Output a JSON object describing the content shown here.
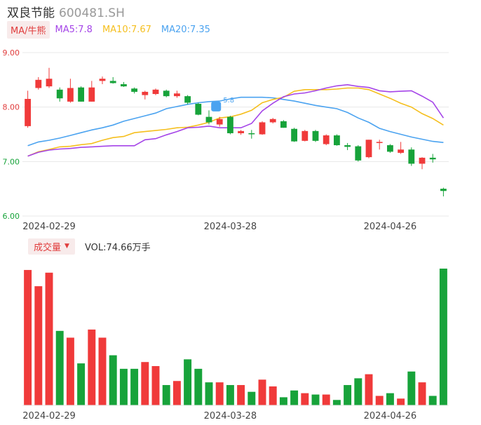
{
  "stock": {
    "name": "双良节能",
    "code": "600481.SH"
  },
  "ma": {
    "label": "MA/牛熊",
    "ma5": "MA5:7.8",
    "ma10": "MA10:7.67",
    "ma20": "MA20:7.35"
  },
  "volume": {
    "label": "成交量",
    "text": "VOL:74.66万手"
  },
  "colors": {
    "up": "#f03a3a",
    "down": "#17a33a",
    "ma5": "#a545e8",
    "ma10": "#f5bf1e",
    "ma20": "#4ba3f0",
    "grid": "#e8e8e8",
    "axis_text": "#666666",
    "ytick_up": "#e03c3c",
    "ytick_down": "#17a33a"
  },
  "chart_data": {
    "type": "candlestick",
    "yticks": [
      "9.00",
      "8.00",
      "7.00",
      "6.00"
    ],
    "ylim": [
      6.0,
      9.0
    ],
    "xtick_labels": [
      "2024-02-29",
      "2024-03-28",
      "2024-04-26"
    ],
    "xtick_index": [
      2,
      19,
      34
    ],
    "annotation": "5.8",
    "candles": [
      {
        "o": 7.65,
        "h": 8.3,
        "l": 7.62,
        "c": 8.15
      },
      {
        "o": 8.35,
        "h": 8.55,
        "l": 8.32,
        "c": 8.5
      },
      {
        "o": 8.38,
        "h": 8.72,
        "l": 8.35,
        "c": 8.52
      },
      {
        "o": 8.32,
        "h": 8.36,
        "l": 8.1,
        "c": 8.16
      },
      {
        "o": 8.1,
        "h": 8.52,
        "l": 8.08,
        "c": 8.35
      },
      {
        "o": 8.36,
        "h": 8.38,
        "l": 8.1,
        "c": 8.1
      },
      {
        "o": 8.1,
        "h": 8.48,
        "l": 8.1,
        "c": 8.36
      },
      {
        "o": 8.48,
        "h": 8.56,
        "l": 8.42,
        "c": 8.52
      },
      {
        "o": 8.48,
        "h": 8.55,
        "l": 8.43,
        "c": 8.44
      },
      {
        "o": 8.42,
        "h": 8.46,
        "l": 8.37,
        "c": 8.38
      },
      {
        "o": 8.34,
        "h": 8.36,
        "l": 8.25,
        "c": 8.28
      },
      {
        "o": 8.22,
        "h": 8.3,
        "l": 8.14,
        "c": 8.28
      },
      {
        "o": 8.24,
        "h": 8.34,
        "l": 8.22,
        "c": 8.32
      },
      {
        "o": 8.3,
        "h": 8.32,
        "l": 8.18,
        "c": 8.2
      },
      {
        "o": 8.2,
        "h": 8.3,
        "l": 8.17,
        "c": 8.25
      },
      {
        "o": 8.2,
        "h": 8.22,
        "l": 8.05,
        "c": 8.08
      },
      {
        "o": 8.06,
        "h": 8.08,
        "l": 7.85,
        "c": 7.86
      },
      {
        "o": 7.82,
        "h": 7.94,
        "l": 7.68,
        "c": 7.72
      },
      {
        "o": 7.68,
        "h": 7.82,
        "l": 7.64,
        "c": 7.78
      },
      {
        "o": 7.82,
        "h": 7.84,
        "l": 7.5,
        "c": 7.52
      },
      {
        "o": 7.52,
        "h": 7.58,
        "l": 7.49,
        "c": 7.56
      },
      {
        "o": 7.52,
        "h": 7.58,
        "l": 7.42,
        "c": 7.51
      },
      {
        "o": 7.5,
        "h": 7.74,
        "l": 7.49,
        "c": 7.72
      },
      {
        "o": 7.72,
        "h": 7.8,
        "l": 7.7,
        "c": 7.78
      },
      {
        "o": 7.74,
        "h": 7.76,
        "l": 7.62,
        "c": 7.62
      },
      {
        "o": 7.6,
        "h": 7.62,
        "l": 7.36,
        "c": 7.37
      },
      {
        "o": 7.38,
        "h": 7.58,
        "l": 7.37,
        "c": 7.56
      },
      {
        "o": 7.56,
        "h": 7.58,
        "l": 7.36,
        "c": 7.38
      },
      {
        "o": 7.32,
        "h": 7.5,
        "l": 7.3,
        "c": 7.48
      },
      {
        "o": 7.48,
        "h": 7.5,
        "l": 7.29,
        "c": 7.3
      },
      {
        "o": 7.3,
        "h": 7.34,
        "l": 7.21,
        "c": 7.27
      },
      {
        "o": 7.28,
        "h": 7.3,
        "l": 7.0,
        "c": 7.02
      },
      {
        "o": 7.08,
        "h": 7.4,
        "l": 7.06,
        "c": 7.4
      },
      {
        "o": 7.34,
        "h": 7.4,
        "l": 7.22,
        "c": 7.36
      },
      {
        "o": 7.3,
        "h": 7.32,
        "l": 7.16,
        "c": 7.18
      },
      {
        "o": 7.16,
        "h": 7.36,
        "l": 7.14,
        "c": 7.22
      },
      {
        "o": 7.22,
        "h": 7.26,
        "l": 6.92,
        "c": 6.96
      },
      {
        "o": 6.96,
        "h": 7.08,
        "l": 6.86,
        "c": 7.07
      },
      {
        "o": 7.07,
        "h": 7.14,
        "l": 6.98,
        "c": 7.04
      },
      {
        "o": 6.5,
        "h": 6.52,
        "l": 6.36,
        "c": 6.46
      }
    ],
    "ma5": [
      7.1,
      7.17,
      7.21,
      7.23,
      7.24,
      7.26,
      7.27,
      7.28,
      7.29,
      7.29,
      7.29,
      7.4,
      7.42,
      7.49,
      7.55,
      7.62,
      7.63,
      7.65,
      7.62,
      7.62,
      7.62,
      7.7,
      7.93,
      8.07,
      8.19,
      8.24,
      8.26,
      8.3,
      8.35,
      8.39,
      8.41,
      8.38,
      8.36,
      8.3,
      8.28,
      8.29,
      8.3,
      8.2,
      8.09,
      7.8
    ],
    "ma10": [
      7.1,
      7.18,
      7.22,
      7.27,
      7.28,
      7.31,
      7.33,
      7.39,
      7.44,
      7.46,
      7.53,
      7.55,
      7.57,
      7.59,
      7.62,
      7.63,
      7.67,
      7.72,
      7.8,
      7.82,
      7.87,
      7.94,
      8.08,
      8.14,
      8.18,
      8.29,
      8.32,
      8.32,
      8.32,
      8.33,
      8.35,
      8.35,
      8.32,
      8.24,
      8.16,
      8.07,
      8.0,
      7.88,
      7.79,
      7.67
    ],
    "ma20": [
      7.29,
      7.36,
      7.39,
      7.43,
      7.48,
      7.53,
      7.58,
      7.62,
      7.67,
      7.74,
      7.79,
      7.84,
      7.89,
      7.97,
      8.01,
      8.05,
      8.08,
      8.1,
      8.11,
      8.15,
      8.18,
      8.18,
      8.18,
      8.17,
      8.14,
      8.11,
      8.07,
      8.03,
      8.0,
      7.97,
      7.9,
      7.8,
      7.72,
      7.61,
      7.55,
      7.5,
      7.45,
      7.41,
      7.37,
      7.35
    ],
    "volume": [
      100,
      88,
      98,
      55,
      50,
      31,
      56,
      50,
      37,
      27,
      27,
      32,
      29,
      15,
      18,
      34,
      27,
      17,
      17,
      15,
      15,
      10,
      19,
      14,
      6,
      11,
      9,
      8,
      8,
      4,
      15,
      20,
      23,
      7,
      9,
      5,
      25,
      17,
      7,
      101
    ],
    "volume_ylim": [
      0,
      101
    ]
  }
}
